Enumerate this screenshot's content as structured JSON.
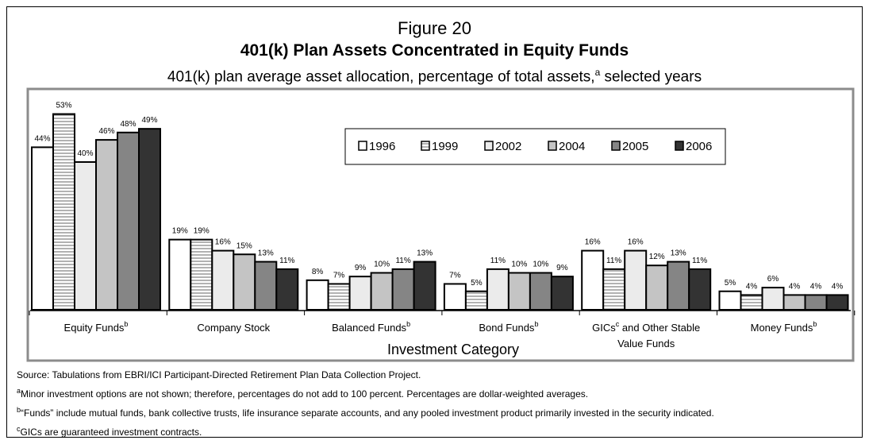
{
  "header": {
    "figure_label": "Figure 20",
    "title": "401(k) Plan Assets Concentrated in Equity Funds",
    "subtitle_main": "401(k) plan average asset allocation, percentage of total assets,",
    "subtitle_sup": "a",
    "subtitle_tail": " selected years"
  },
  "footnotes": {
    "source": "Source: Tabulations from EBRI/ICI Participant-Directed Retirement Plan Data Collection Project.",
    "a_mark": "a",
    "a": "Minor investment options are not shown; therefore, percentages do not add to 100 percent. Percentages are dollar-weighted averages.",
    "b_mark": "b",
    "b": "“Funds” include mutual funds, bank collective trusts, life insurance separate accounts, and any pooled investment product primarily invested in the security indicated.",
    "c_mark": "c",
    "c": "GICs are guaranteed investment contracts."
  },
  "colors": {
    "1996": "#ffffff",
    "1999": "#ffffff",
    "2002": "#ebebeb",
    "2004": "#c4c4c4",
    "2005": "#858585",
    "2006": "#333333",
    "plot_border": "#8c8c8c"
  },
  "chart_data": {
    "type": "bar",
    "title": "401(k) Plan Assets Concentrated in Equity Funds",
    "xlabel": "Investment Category",
    "ylabel": "",
    "ylim": [
      0,
      55
    ],
    "grid": false,
    "legend_position": "top-right",
    "categories": [
      {
        "label": "Equity Funds",
        "sup": "b",
        "label2": ""
      },
      {
        "label": "Company Stock",
        "sup": "",
        "label2": ""
      },
      {
        "label": "Balanced Funds",
        "sup": "b",
        "label2": ""
      },
      {
        "label": "Bond Funds",
        "sup": "b",
        "label2": ""
      },
      {
        "label": "GICs",
        "sup": "c",
        "label_after": " and Other Stable",
        "label2": "Value Funds"
      },
      {
        "label": "Money Funds",
        "sup": "b",
        "label2": ""
      }
    ],
    "series": [
      {
        "name": "1996",
        "pattern": "solid",
        "values": [
          44,
          19,
          8,
          7,
          16,
          5
        ],
        "labels": [
          "44%",
          "19%",
          "8%",
          "7%",
          "16%",
          "5%"
        ]
      },
      {
        "name": "1999",
        "pattern": "hatch",
        "values": [
          53,
          19,
          7,
          5,
          11,
          4
        ],
        "labels": [
          "53%",
          "19%",
          "7%",
          "5%",
          "11%",
          "4%"
        ]
      },
      {
        "name": "2002",
        "pattern": "solid",
        "values": [
          40,
          16,
          9,
          11,
          16,
          6
        ],
        "labels": [
          "40%",
          "16%",
          "9%",
          "11%",
          "16%",
          "6%"
        ]
      },
      {
        "name": "2004",
        "pattern": "solid",
        "values": [
          46,
          15,
          10,
          10,
          12,
          4
        ],
        "labels": [
          "46%",
          "15%",
          "10%",
          "10%",
          "12%",
          "4%"
        ]
      },
      {
        "name": "2005",
        "pattern": "solid",
        "values": [
          48,
          13,
          11,
          10,
          13,
          4
        ],
        "labels": [
          "48%",
          "13%",
          "11%",
          "10%",
          "13%",
          "4%"
        ]
      },
      {
        "name": "2006",
        "pattern": "solid",
        "values": [
          49,
          11,
          13,
          9,
          11,
          4
        ],
        "labels": [
          "49%",
          "11%",
          "13%",
          "9%",
          "11%",
          "4%"
        ]
      }
    ]
  }
}
